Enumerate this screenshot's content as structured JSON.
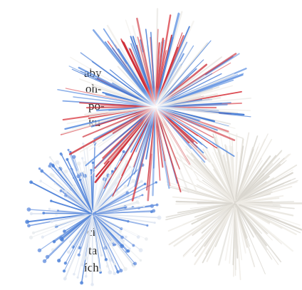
{
  "text_lines": [
    "aby",
    "oh-",
    "po-",
    "ku",
    "cí",
    "ta",
    "ích"
  ]
}
